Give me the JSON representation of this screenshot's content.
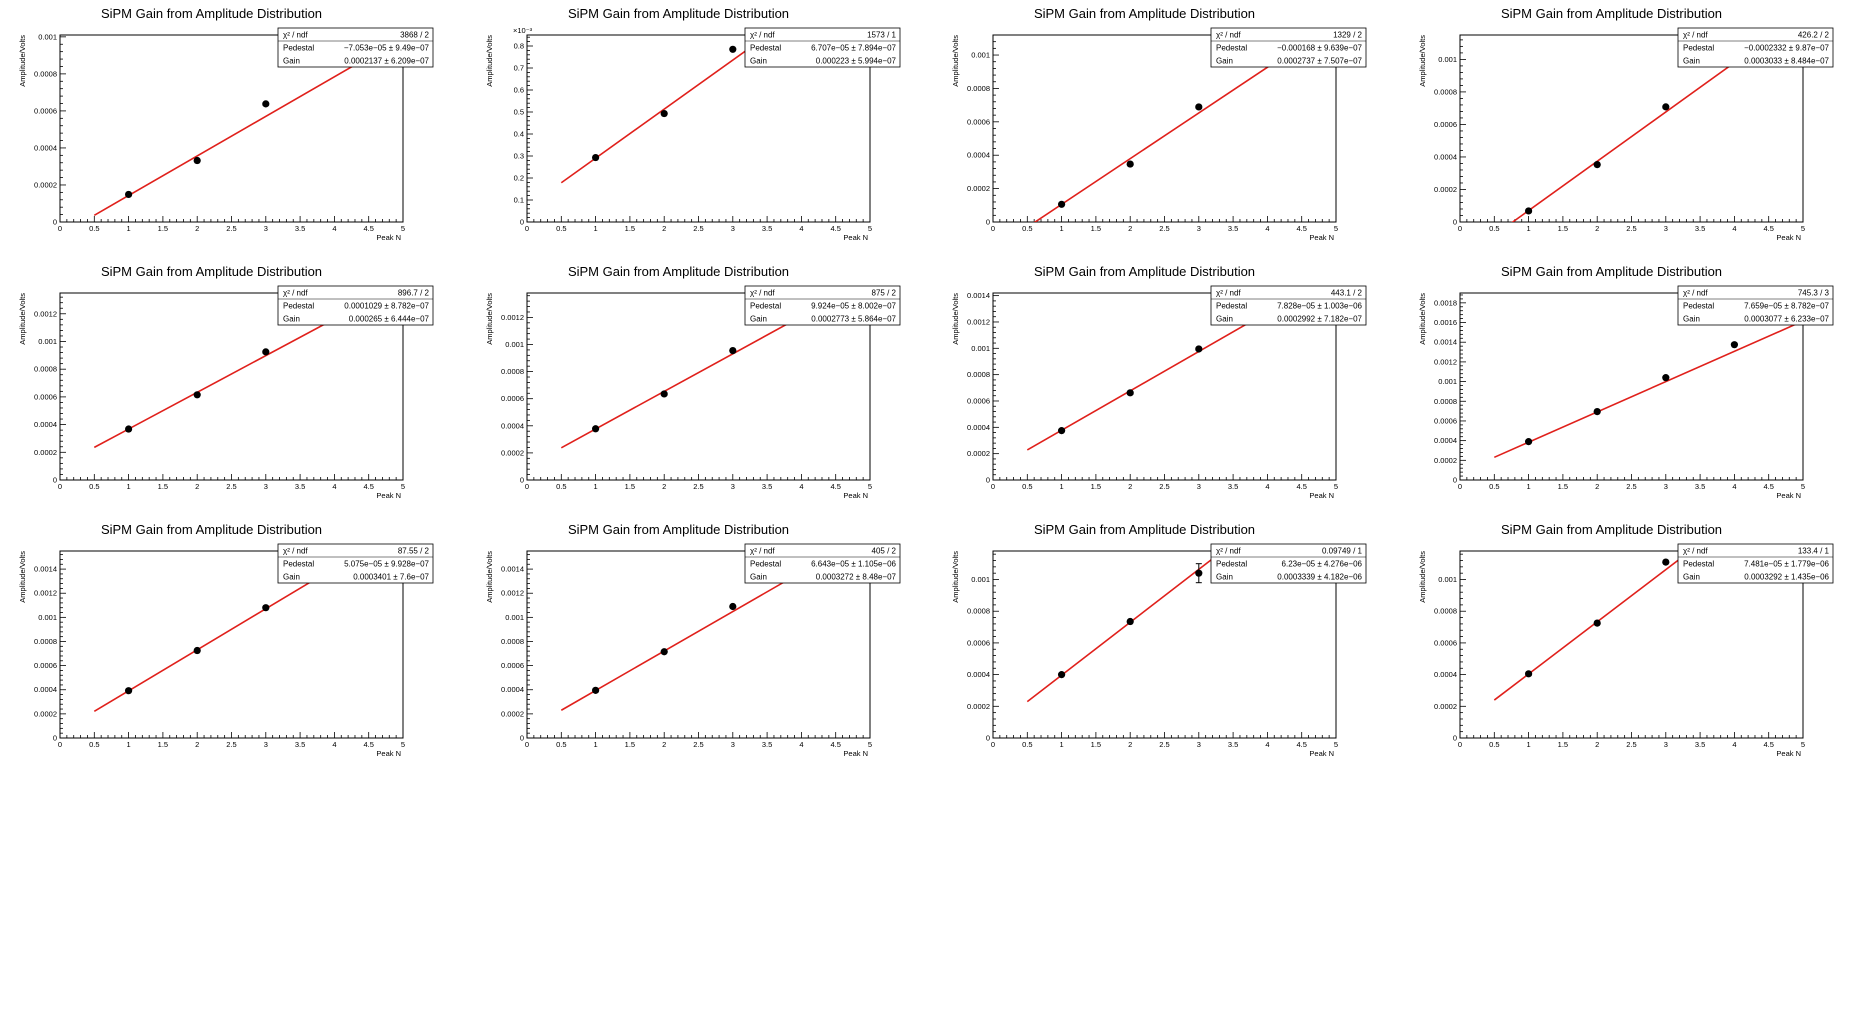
{
  "colors": {
    "fit_line": "#e0201b",
    "points": "#000000",
    "axes": "#000000",
    "background": "#ffffff"
  },
  "chart_data": [
    {
      "type": "scatter",
      "title": "SiPM Gain from Amplitude Distribution",
      "xlabel": "Peak N",
      "ylabel": "Amplitude/Volts",
      "xlim": [
        0,
        5
      ],
      "ylim": [
        0,
        0.00101
      ],
      "yticks": [
        0,
        0.0002,
        0.0004,
        0.0006,
        0.0008,
        0.001
      ],
      "ytick_labels": [
        "0",
        "0.0002",
        "0.0004",
        "0.0006",
        "0.0008",
        "0.001"
      ],
      "y_exponent_label": "",
      "x": [
        1,
        2,
        3
      ],
      "y": [
        0.000149,
        0.000332,
        0.000638
      ],
      "fit": {
        "slope": 0.0002137,
        "intercept": -7.053e-05,
        "x_range": [
          0.5,
          5
        ]
      },
      "stats": {
        "chi2_label": "χ² / ndf",
        "chi2": "3868 / 2",
        "pedestal_label": "Pedestal",
        "pedestal": "−7.053e−05 ± 9.49e−07",
        "gain_label": "Gain",
        "gain": "0.0002137 ± 6.209e−07"
      }
    },
    {
      "type": "scatter",
      "title": "SiPM Gain from Amplitude Distribution",
      "xlabel": "Peak N",
      "ylabel": "Amplitude/Volts",
      "xlim": [
        0,
        5
      ],
      "ylim": [
        0,
        0.00085
      ],
      "yticks": [
        0,
        0.0001,
        0.0002,
        0.0003,
        0.0004,
        0.0005,
        0.0006,
        0.0007,
        0.0008
      ],
      "ytick_labels": [
        "0",
        "0.1",
        "0.2",
        "0.3",
        "0.4",
        "0.5",
        "0.6",
        "0.7",
        "0.8"
      ],
      "y_exponent_label": "×10⁻³",
      "x": [
        1,
        2,
        3
      ],
      "y": [
        0.000293,
        0.000493,
        0.000785
      ],
      "fit": {
        "slope": 0.000223,
        "intercept": 6.707e-05,
        "x_range": [
          0.5,
          5
        ]
      },
      "stats": {
        "chi2_label": "χ² / ndf",
        "chi2": "1573 / 1",
        "pedestal_label": "Pedestal",
        "pedestal": "6.707e−05 ± 7.894e−07",
        "gain_label": "Gain",
        "gain": "0.000223 ± 5.994e−07"
      }
    },
    {
      "type": "scatter",
      "title": "SiPM Gain from Amplitude Distribution",
      "xlabel": "Peak N",
      "ylabel": "Amplitude/Volts",
      "xlim": [
        0,
        5
      ],
      "ylim": [
        0,
        0.00112
      ],
      "yticks": [
        0,
        0.0002,
        0.0004,
        0.0006,
        0.0008,
        0.001
      ],
      "ytick_labels": [
        "0",
        "0.0002",
        "0.0004",
        "0.0006",
        "0.0008",
        "0.001"
      ],
      "y_exponent_label": "",
      "x": [
        1,
        2,
        3
      ],
      "y": [
        0.000106,
        0.000347,
        0.000689
      ],
      "fit": {
        "slope": 0.0002737,
        "intercept": -0.000168,
        "x_range": [
          0.5,
          5
        ]
      },
      "stats": {
        "chi2_label": "χ² / ndf",
        "chi2": "1329 / 2",
        "pedestal_label": "Pedestal",
        "pedestal": "−0.000168 ± 9.639e−07",
        "gain_label": "Gain",
        "gain": "0.0002737 ± 7.507e−07"
      }
    },
    {
      "type": "scatter",
      "title": "SiPM Gain from Amplitude Distribution",
      "xlabel": "Peak N",
      "ylabel": "Amplitude/Volts",
      "xlim": [
        0,
        5
      ],
      "ylim": [
        0,
        0.00115
      ],
      "yticks": [
        0,
        0.0002,
        0.0004,
        0.0006,
        0.0008,
        0.001
      ],
      "ytick_labels": [
        "0",
        "0.0002",
        "0.0004",
        "0.0006",
        "0.0008",
        "0.001"
      ],
      "y_exponent_label": "",
      "x": [
        1,
        2,
        3
      ],
      "y": [
        6.8e-05,
        0.000353,
        0.000708
      ],
      "fit": {
        "slope": 0.0003033,
        "intercept": -0.0002332,
        "x_range": [
          0.5,
          5
        ]
      },
      "stats": {
        "chi2_label": "χ² / ndf",
        "chi2": "426.2 / 2",
        "pedestal_label": "Pedestal",
        "pedestal": "−0.0002332 ± 9.87e−07",
        "gain_label": "Gain",
        "gain": "0.0003033 ± 8.484e−07"
      }
    },
    {
      "type": "scatter",
      "title": "SiPM Gain from Amplitude Distribution",
      "xlabel": "Peak N",
      "ylabel": "Amplitude/Volts",
      "xlim": [
        0,
        5
      ],
      "ylim": [
        0,
        0.00135
      ],
      "yticks": [
        0,
        0.0002,
        0.0004,
        0.0006,
        0.0008,
        0.001,
        0.0012
      ],
      "ytick_labels": [
        "0",
        "0.0002",
        "0.0004",
        "0.0006",
        "0.0008",
        "0.001",
        "0.0012"
      ],
      "y_exponent_label": "",
      "x": [
        1,
        2,
        3
      ],
      "y": [
        0.000368,
        0.000615,
        0.000925
      ],
      "fit": {
        "slope": 0.000265,
        "intercept": 0.0001029,
        "x_range": [
          0.5,
          5
        ]
      },
      "stats": {
        "chi2_label": "χ² / ndf",
        "chi2": "896.7 / 2",
        "pedestal_label": "Pedestal",
        "pedestal": "0.0001029 ± 8.782e−07",
        "gain_label": "Gain",
        "gain": "0.000265 ± 6.444e−07"
      }
    },
    {
      "type": "scatter",
      "title": "SiPM Gain from Amplitude Distribution",
      "xlabel": "Peak N",
      "ylabel": "Amplitude/Volts",
      "xlim": [
        0,
        5
      ],
      "ylim": [
        0,
        0.00138
      ],
      "yticks": [
        0,
        0.0002,
        0.0004,
        0.0006,
        0.0008,
        0.001,
        0.0012
      ],
      "ytick_labels": [
        "0",
        "0.0002",
        "0.0004",
        "0.0006",
        "0.0008",
        "0.001",
        "0.0012"
      ],
      "y_exponent_label": "",
      "x": [
        1,
        2,
        3
      ],
      "y": [
        0.000378,
        0.000635,
        0.000955
      ],
      "fit": {
        "slope": 0.0002773,
        "intercept": 9.924e-05,
        "x_range": [
          0.5,
          5
        ]
      },
      "stats": {
        "chi2_label": "χ² / ndf",
        "chi2": "875 / 2",
        "pedestal_label": "Pedestal",
        "pedestal": "9.924e−05 ± 8.002e−07",
        "gain_label": "Gain",
        "gain": "0.0002773 ± 5.864e−07"
      }
    },
    {
      "type": "scatter",
      "title": "SiPM Gain from Amplitude Distribution",
      "xlabel": "Peak N",
      "ylabel": "Amplitude/Volts",
      "xlim": [
        0,
        5
      ],
      "ylim": [
        0,
        0.00142
      ],
      "yticks": [
        0,
        0.0002,
        0.0004,
        0.0006,
        0.0008,
        0.001,
        0.0012,
        0.0014
      ],
      "ytick_labels": [
        "0",
        "0.0002",
        "0.0004",
        "0.0006",
        "0.0008",
        "0.001",
        "0.0012",
        "0.0014"
      ],
      "y_exponent_label": "",
      "x": [
        1,
        2,
        3
      ],
      "y": [
        0.000375,
        0.000662,
        0.000995
      ],
      "fit": {
        "slope": 0.0002992,
        "intercept": 7.828e-05,
        "x_range": [
          0.5,
          5
        ]
      },
      "stats": {
        "chi2_label": "χ² / ndf",
        "chi2": "443.1 / 2",
        "pedestal_label": "Pedestal",
        "pedestal": "7.828e−05 ± 1.003e−06",
        "gain_label": "Gain",
        "gain": "0.0002992 ± 7.182e−07"
      }
    },
    {
      "type": "scatter",
      "title": "SiPM Gain from Amplitude Distribution",
      "xlabel": "Peak N",
      "ylabel": "Amplitude/Volts",
      "xlim": [
        0,
        5
      ],
      "ylim": [
        0,
        0.0019
      ],
      "yticks": [
        0,
        0.0002,
        0.0004,
        0.0006,
        0.0008,
        0.001,
        0.0012,
        0.0014,
        0.0016,
        0.0018
      ],
      "ytick_labels": [
        "0",
        "0.0002",
        "0.0004",
        "0.0006",
        "0.0008",
        "0.001",
        "0.0012",
        "0.0014",
        "0.0016",
        "0.0018"
      ],
      "y_exponent_label": "",
      "x": [
        1,
        2,
        3,
        4
      ],
      "y": [
        0.00039,
        0.000695,
        0.00104,
        0.001375
      ],
      "fit": {
        "slope": 0.0003077,
        "intercept": 7.659e-05,
        "x_range": [
          0.5,
          5
        ]
      },
      "stats": {
        "chi2_label": "χ² / ndf",
        "chi2": "745.3 / 3",
        "pedestal_label": "Pedestal",
        "pedestal": "7.659e−05 ± 8.782e−07",
        "gain_label": "Gain",
        "gain": "0.0003077 ± 6.233e−07"
      }
    },
    {
      "type": "scatter",
      "title": "SiPM Gain from Amplitude Distribution",
      "xlabel": "Peak N",
      "ylabel": "Amplitude/Volts",
      "xlim": [
        0,
        5
      ],
      "ylim": [
        0,
        0.00155
      ],
      "yticks": [
        0,
        0.0002,
        0.0004,
        0.0006,
        0.0008,
        0.001,
        0.0012,
        0.0014
      ],
      "ytick_labels": [
        "0",
        "0.0002",
        "0.0004",
        "0.0006",
        "0.0008",
        "0.001",
        "0.0012",
        "0.0014"
      ],
      "y_exponent_label": "",
      "x": [
        1,
        2,
        3
      ],
      "y": [
        0.000392,
        0.000725,
        0.00108
      ],
      "fit": {
        "slope": 0.0003401,
        "intercept": 5.075e-05,
        "x_range": [
          0.5,
          5
        ]
      },
      "stats": {
        "chi2_label": "χ² / ndf",
        "chi2": "87.55 / 2",
        "pedestal_label": "Pedestal",
        "pedestal": "5.075e−05 ± 9.928e−07",
        "gain_label": "Gain",
        "gain": "0.0003401 ± 7.6e−07"
      }
    },
    {
      "type": "scatter",
      "title": "SiPM Gain from Amplitude Distribution",
      "xlabel": "Peak N",
      "ylabel": "Amplitude/Volts",
      "xlim": [
        0,
        5
      ],
      "ylim": [
        0,
        0.00155
      ],
      "yticks": [
        0,
        0.0002,
        0.0004,
        0.0006,
        0.0008,
        0.001,
        0.0012,
        0.0014
      ],
      "ytick_labels": [
        "0",
        "0.0002",
        "0.0004",
        "0.0006",
        "0.0008",
        "0.001",
        "0.0012",
        "0.0014"
      ],
      "y_exponent_label": "",
      "x": [
        1,
        2,
        3
      ],
      "y": [
        0.000395,
        0.000715,
        0.00109
      ],
      "fit": {
        "slope": 0.0003272,
        "intercept": 6.643e-05,
        "x_range": [
          0.5,
          5
        ]
      },
      "stats": {
        "chi2_label": "χ² / ndf",
        "chi2": "405 / 2",
        "pedestal_label": "Pedestal",
        "pedestal": "6.643e−05 ± 1.105e−06",
        "gain_label": "Gain",
        "gain": "0.0003272 ± 8.48e−07"
      }
    },
    {
      "type": "scatter",
      "title": "SiPM Gain from Amplitude Distribution",
      "xlabel": "Peak N",
      "ylabel": "Amplitude/Volts",
      "xlim": [
        0,
        5
      ],
      "ylim": [
        0,
        0.00118
      ],
      "yticks": [
        0,
        0.0002,
        0.0004,
        0.0006,
        0.0008,
        0.001
      ],
      "ytick_labels": [
        "0",
        "0.0002",
        "0.0004",
        "0.0006",
        "0.0008",
        "0.001"
      ],
      "y_exponent_label": "",
      "x": [
        1,
        2,
        3
      ],
      "y": [
        0.0004,
        0.000735,
        0.00104
      ],
      "yerr": [
        0,
        0,
        6e-05
      ],
      "fit": {
        "slope": 0.0003339,
        "intercept": 6.23e-05,
        "x_range": [
          0.5,
          5
        ]
      },
      "stats": {
        "chi2_label": "χ² / ndf",
        "chi2": "0.09749 / 1",
        "pedestal_label": "Pedestal",
        "pedestal": "6.23e−05 ± 4.276e−06",
        "gain_label": "Gain",
        "gain": "0.0003339 ± 4.182e−06"
      }
    },
    {
      "type": "scatter",
      "title": "SiPM Gain from Amplitude Distribution",
      "xlabel": "Peak N",
      "ylabel": "Amplitude/Volts",
      "xlim": [
        0,
        5
      ],
      "ylim": [
        0,
        0.00118
      ],
      "yticks": [
        0,
        0.0002,
        0.0004,
        0.0006,
        0.0008,
        0.001
      ],
      "ytick_labels": [
        "0",
        "0.0002",
        "0.0004",
        "0.0006",
        "0.0008",
        "0.001"
      ],
      "y_exponent_label": "",
      "x": [
        1,
        2,
        3
      ],
      "y": [
        0.000405,
        0.000725,
        0.00111
      ],
      "fit": {
        "slope": 0.0003292,
        "intercept": 7.481e-05,
        "x_range": [
          0.5,
          5
        ]
      },
      "stats": {
        "chi2_label": "χ² / ndf",
        "chi2": "133.4 / 1",
        "pedestal_label": "Pedestal",
        "pedestal": "7.481e−05 ± 1.779e−06",
        "gain_label": "Gain",
        "gain": "0.0003292 ± 1.435e−06"
      }
    }
  ]
}
